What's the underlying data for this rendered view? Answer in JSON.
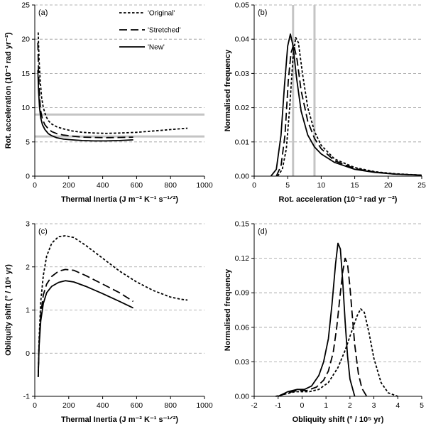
{
  "chart_data": [
    {
      "panel": "(a)",
      "type": "line",
      "xlabel": "Thermal Inertia (J m⁻² K⁻¹ s⁻¹ᐟ²)",
      "ylabel": "Rot. acceleration (10⁻³ rad yr⁻²)",
      "xlim": [
        0,
        1000
      ],
      "ylim": [
        0,
        25
      ],
      "xticks": [
        0,
        200,
        400,
        600,
        800,
        1000
      ],
      "yticks": [
        0,
        5,
        10,
        15,
        20,
        25
      ],
      "grid": "horizontal-dashed",
      "hlines": [
        5.8,
        9.0
      ],
      "legend": [
        "'Original'",
        "'Stretched'",
        "'New'"
      ],
      "series": [
        {
          "name": "'Original'",
          "style": "short-dash",
          "x": [
            20,
            25,
            32,
            40,
            50,
            65,
            80,
            100,
            130,
            170,
            220,
            280,
            350,
            420,
            500,
            600,
            700,
            800,
            900
          ],
          "y": [
            21,
            17,
            14,
            11.5,
            10,
            8.8,
            8.1,
            7.6,
            7.2,
            6.9,
            6.6,
            6.4,
            6.3,
            6.25,
            6.3,
            6.4,
            6.6,
            6.8,
            7.0
          ]
        },
        {
          "name": "'Stretched'",
          "style": "long-dash",
          "x": [
            18,
            22,
            28,
            35,
            45,
            60,
            80,
            100,
            130,
            170,
            220,
            280,
            350,
            420,
            500,
            580
          ],
          "y": [
            19.5,
            15,
            11.5,
            9.5,
            8.3,
            7.5,
            6.9,
            6.5,
            6.2,
            6.0,
            5.85,
            5.7,
            5.65,
            5.62,
            5.65,
            5.7
          ]
        },
        {
          "name": "'New'",
          "style": "solid",
          "x": [
            18,
            22,
            28,
            35,
            45,
            60,
            80,
            100,
            130,
            170,
            220,
            280,
            350,
            420,
            500,
            580
          ],
          "y": [
            15.5,
            12.5,
            10,
            8.5,
            7.5,
            6.8,
            6.2,
            5.9,
            5.6,
            5.4,
            5.3,
            5.2,
            5.15,
            5.15,
            5.2,
            5.3
          ]
        }
      ]
    },
    {
      "panel": "(b)",
      "type": "line",
      "xlabel": "Rot. acceleration (10⁻³ rad yr ⁻²)",
      "ylabel": "Normalised frequency",
      "xlim": [
        0,
        25
      ],
      "ylim": [
        0,
        0.05
      ],
      "xticks": [
        0,
        5,
        10,
        15,
        20,
        25
      ],
      "yticks": [
        0.0,
        0.01,
        0.02,
        0.03,
        0.04,
        0.05
      ],
      "ytick_labels": [
        "0.00",
        "0.01",
        "0.02",
        "0.03",
        "0.04",
        "0.05"
      ],
      "grid": "horizontal-dashed",
      "vlines": [
        5.8,
        9.0
      ],
      "series": [
        {
          "name": "'Original'",
          "style": "short-dash",
          "x": [
            3.5,
            4.2,
            4.8,
            5.3,
            5.8,
            6.2,
            6.6,
            7.2,
            8.0,
            9.0,
            10,
            12,
            15,
            18,
            21,
            25
          ],
          "y": [
            0,
            0.002,
            0.008,
            0.02,
            0.035,
            0.0405,
            0.039,
            0.03,
            0.02,
            0.013,
            0.009,
            0.005,
            0.0025,
            0.0013,
            0.0007,
            0.0003
          ]
        },
        {
          "name": "'Stretched'",
          "style": "long-dash",
          "x": [
            3.3,
            4.0,
            4.6,
            5.1,
            5.5,
            5.9,
            6.4,
            7.0,
            8.0,
            9.0,
            10,
            12,
            15,
            18,
            21,
            25
          ],
          "y": [
            0,
            0.003,
            0.012,
            0.028,
            0.036,
            0.0385,
            0.034,
            0.025,
            0.016,
            0.011,
            0.008,
            0.0045,
            0.0022,
            0.0012,
            0.0006,
            0.0003
          ]
        },
        {
          "name": "'New'",
          "style": "solid",
          "x": [
            2.5,
            3.3,
            4.0,
            4.5,
            5.0,
            5.4,
            5.8,
            6.3,
            7.0,
            8.0,
            9.0,
            10,
            12,
            15,
            18,
            21,
            25
          ],
          "y": [
            0,
            0.002,
            0.012,
            0.026,
            0.038,
            0.0415,
            0.038,
            0.029,
            0.019,
            0.012,
            0.0085,
            0.0065,
            0.004,
            0.002,
            0.0011,
            0.0006,
            0.0003
          ]
        }
      ]
    },
    {
      "panel": "(c)",
      "type": "line",
      "xlabel": "Thermal Inertia (J m⁻² K⁻¹ s⁻¹ᐟ²)",
      "ylabel": "Obliquity shift (° / 10⁵ yr)",
      "xlim": [
        0,
        1000
      ],
      "ylim": [
        -1,
        3
      ],
      "xticks": [
        0,
        200,
        400,
        600,
        800,
        1000
      ],
      "yticks": [
        -1,
        0,
        1,
        2,
        3
      ],
      "grid": "horizontal-dashed",
      "series": [
        {
          "name": "'Original'",
          "style": "short-dash",
          "x": [
            20,
            25,
            35,
            50,
            70,
            100,
            140,
            180,
            230,
            300,
            400,
            500,
            600,
            700,
            800,
            860,
            900
          ],
          "y": [
            -0.55,
            0.3,
            1.2,
            1.8,
            2.25,
            2.55,
            2.7,
            2.72,
            2.68,
            2.5,
            2.2,
            1.9,
            1.65,
            1.45,
            1.3,
            1.25,
            1.23
          ]
        },
        {
          "name": "'Stretched'",
          "style": "long-dash",
          "x": [
            20,
            25,
            35,
            50,
            70,
            100,
            140,
            180,
            230,
            300,
            400,
            500,
            580
          ],
          "y": [
            -0.55,
            0.2,
            0.9,
            1.35,
            1.6,
            1.78,
            1.9,
            1.94,
            1.92,
            1.8,
            1.6,
            1.4,
            1.2
          ]
        },
        {
          "name": "'New'",
          "style": "solid",
          "x": [
            20,
            25,
            35,
            50,
            70,
            100,
            140,
            180,
            230,
            300,
            400,
            500,
            580
          ],
          "y": [
            -0.55,
            0.15,
            0.75,
            1.15,
            1.4,
            1.55,
            1.64,
            1.68,
            1.65,
            1.55,
            1.38,
            1.2,
            1.05
          ]
        }
      ]
    },
    {
      "panel": "(d)",
      "type": "line",
      "xlabel": "Obliquity shift (° / 10⁵ yr)",
      "ylabel": "Normalised frequency",
      "xlim": [
        -2,
        5
      ],
      "ylim": [
        0,
        0.15
      ],
      "xticks": [
        -2,
        -1,
        0,
        1,
        2,
        3,
        4,
        5
      ],
      "yticks": [
        0.0,
        0.03,
        0.06,
        0.09,
        0.12,
        0.15
      ],
      "ytick_labels": [
        "0.00",
        "0.03",
        "0.06",
        "0.09",
        "0.12",
        "0.15"
      ],
      "grid": "horizontal-dashed",
      "series": [
        {
          "name": "'Original'",
          "style": "short-dash",
          "x": [
            -1.1,
            -0.7,
            -0.3,
            0,
            0.3,
            0.7,
            1.1,
            1.5,
            1.8,
            2.1,
            2.3,
            2.45,
            2.6,
            2.8,
            3.0,
            3.3,
            3.6,
            4.0
          ],
          "y": [
            0,
            0.002,
            0.004,
            0.004,
            0.004,
            0.006,
            0.012,
            0.025,
            0.04,
            0.058,
            0.07,
            0.076,
            0.073,
            0.055,
            0.033,
            0.012,
            0.003,
            0
          ]
        },
        {
          "name": "'Stretched'",
          "style": "long-dash",
          "x": [
            -1.0,
            -0.6,
            -0.2,
            0.2,
            0.6,
            0.9,
            1.1,
            1.3,
            1.45,
            1.6,
            1.7,
            1.8,
            1.9,
            2.0,
            2.1,
            2.2,
            2.35,
            2.5,
            2.7
          ],
          "y": [
            0,
            0.003,
            0.005,
            0.005,
            0.008,
            0.014,
            0.022,
            0.038,
            0.06,
            0.09,
            0.108,
            0.12,
            0.115,
            0.095,
            0.07,
            0.045,
            0.02,
            0.007,
            0
          ]
        },
        {
          "name": "'New'",
          "style": "solid",
          "x": [
            -1.0,
            -0.6,
            -0.2,
            0.1,
            0.4,
            0.7,
            0.9,
            1.1,
            1.25,
            1.4,
            1.5,
            1.6,
            1.7,
            1.8,
            1.9,
            2.0,
            2.2
          ],
          "y": [
            0,
            0.004,
            0.006,
            0.006,
            0.009,
            0.018,
            0.03,
            0.05,
            0.08,
            0.115,
            0.133,
            0.128,
            0.1,
            0.065,
            0.035,
            0.015,
            0
          ]
        }
      ]
    }
  ]
}
